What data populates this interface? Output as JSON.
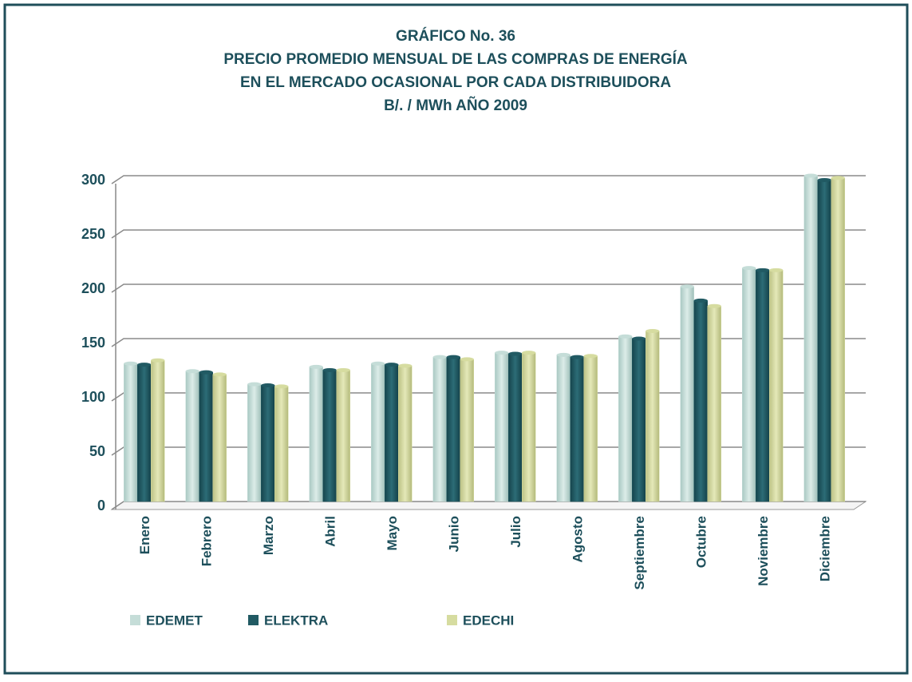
{
  "chart_data": {
    "type": "bar",
    "title": [
      "GRÁFICO  No.  36",
      "PRECIO PROMEDIO MENSUAL  DE LAS COMPRAS DE ENERGÍA",
      "EN EL MERCADO OCASIONAL POR  CADA  DISTRIBUIDORA",
      "B/.  /  MWh       AÑO  2009"
    ],
    "categories": [
      "Enero",
      "Febrero",
      "Marzo",
      "Abril",
      "Mayo",
      "Junio",
      "Julio",
      "Agosto",
      "Septiembre",
      "Octubre",
      "Noviembre",
      "Diciembre"
    ],
    "series": [
      {
        "name": "EDEMET",
        "color": "#c5ddd8",
        "values": [
          127,
          120,
          108,
          124,
          127,
          133,
          137,
          135,
          152,
          198,
          215,
          300
        ]
      },
      {
        "name": "ELEKTRA",
        "color": "#215a63",
        "values": [
          126,
          119,
          107,
          121,
          126,
          133,
          136,
          133,
          150,
          185,
          213,
          296
        ]
      },
      {
        "name": "EDECHI",
        "color": "#d6dca0",
        "values": [
          130,
          117,
          106,
          121,
          125,
          131,
          137,
          134,
          157,
          180,
          213,
          298
        ]
      }
    ],
    "ylim": [
      0,
      300
    ],
    "yticks": [
      0,
      50,
      100,
      150,
      200,
      250,
      300
    ],
    "grid": true
  }
}
